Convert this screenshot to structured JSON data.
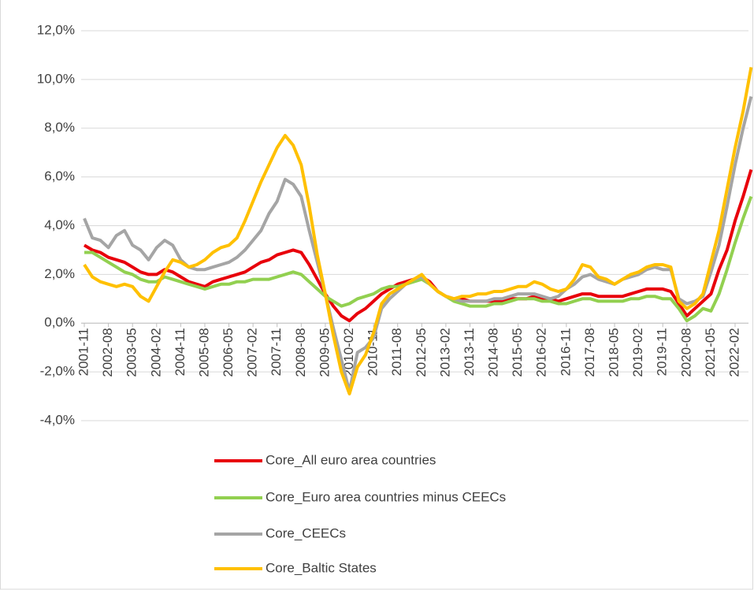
{
  "chart_data": {
    "type": "line",
    "x": [
      "2001-11",
      null,
      null,
      "2002-08",
      null,
      null,
      "2003-05",
      null,
      null,
      "2004-02",
      null,
      null,
      "2004-11",
      null,
      null,
      "2005-08",
      null,
      null,
      "2006-05",
      null,
      null,
      "2007-02",
      null,
      null,
      "2007-11",
      null,
      null,
      "2008-08",
      null,
      null,
      "2009-05",
      null,
      null,
      "2010-02",
      null,
      null,
      "2010-11",
      null,
      null,
      "2011-08",
      null,
      null,
      "2012-05",
      null,
      null,
      "2013-02",
      null,
      null,
      "2013-11",
      null,
      null,
      "2014-08",
      null,
      null,
      "2015-05",
      null,
      null,
      "2016-02",
      null,
      null,
      "2016-11",
      null,
      null,
      "2017-08",
      null,
      null,
      "2018-05",
      null,
      null,
      "2019-02",
      null,
      null,
      "2019-11",
      null,
      null,
      "2020-08",
      null,
      null,
      "2021-05",
      null,
      null,
      "2022-02",
      null,
      null
    ],
    "series": [
      {
        "name": "Core_All euro area countries",
        "color": "#e8000b",
        "values": [
          3.2,
          3.0,
          2.9,
          2.7,
          2.6,
          2.5,
          2.3,
          2.1,
          2.0,
          2.0,
          2.2,
          2.1,
          1.9,
          1.7,
          1.6,
          1.5,
          1.7,
          1.8,
          1.9,
          2.0,
          2.1,
          2.3,
          2.5,
          2.6,
          2.8,
          2.9,
          3.0,
          2.9,
          2.4,
          1.8,
          1.2,
          0.7,
          0.3,
          0.1,
          0.4,
          0.6,
          0.9,
          1.2,
          1.4,
          1.6,
          1.7,
          1.8,
          1.9,
          1.7,
          1.3,
          1.1,
          1.0,
          1.0,
          0.9,
          0.9,
          0.9,
          0.9,
          0.9,
          1.0,
          1.0,
          1.0,
          1.1,
          1.0,
          1.0,
          0.9,
          1.0,
          1.1,
          1.2,
          1.2,
          1.1,
          1.1,
          1.1,
          1.1,
          1.2,
          1.3,
          1.4,
          1.4,
          1.4,
          1.3,
          0.8,
          0.3,
          0.6,
          0.9,
          1.2,
          2.2,
          3.0,
          4.2,
          5.2,
          6.3
        ]
      },
      {
        "name": "Core_Euro area countries minus CEECs",
        "color": "#92d050",
        "values": [
          2.9,
          2.9,
          2.7,
          2.5,
          2.3,
          2.1,
          2.0,
          1.8,
          1.7,
          1.7,
          1.9,
          1.8,
          1.7,
          1.6,
          1.5,
          1.4,
          1.5,
          1.6,
          1.6,
          1.7,
          1.7,
          1.8,
          1.8,
          1.8,
          1.9,
          2.0,
          2.1,
          2.0,
          1.7,
          1.4,
          1.1,
          0.9,
          0.7,
          0.8,
          1.0,
          1.1,
          1.2,
          1.4,
          1.5,
          1.5,
          1.6,
          1.7,
          1.8,
          1.6,
          1.3,
          1.1,
          0.9,
          0.8,
          0.7,
          0.7,
          0.7,
          0.8,
          0.8,
          0.9,
          1.0,
          1.0,
          1.0,
          0.9,
          0.9,
          0.8,
          0.8,
          0.9,
          1.0,
          1.0,
          0.9,
          0.9,
          0.9,
          0.9,
          1.0,
          1.0,
          1.1,
          1.1,
          1.0,
          1.0,
          0.6,
          0.1,
          0.3,
          0.6,
          0.5,
          1.2,
          2.2,
          3.3,
          4.3,
          5.2
        ]
      },
      {
        "name": "Core_CEECs",
        "color": "#a5a5a5",
        "values": [
          4.3,
          3.5,
          3.4,
          3.1,
          3.6,
          3.8,
          3.2,
          3.0,
          2.6,
          3.1,
          3.4,
          3.2,
          2.6,
          2.3,
          2.2,
          2.2,
          2.3,
          2.4,
          2.5,
          2.7,
          3.0,
          3.4,
          3.8,
          4.5,
          5.0,
          5.9,
          5.7,
          5.2,
          3.8,
          2.5,
          1.2,
          -0.2,
          -1.5,
          -2.8,
          -1.2,
          -1.0,
          -0.6,
          0.6,
          1.0,
          1.3,
          1.6,
          1.8,
          1.9,
          1.6,
          1.3,
          1.1,
          1.0,
          0.9,
          0.9,
          0.9,
          0.9,
          1.0,
          1.0,
          1.1,
          1.2,
          1.2,
          1.2,
          1.1,
          1.0,
          1.1,
          1.4,
          1.6,
          1.9,
          2.0,
          1.8,
          1.7,
          1.6,
          1.8,
          1.9,
          2.0,
          2.2,
          2.3,
          2.2,
          2.2,
          1.0,
          0.8,
          0.9,
          1.1,
          2.1,
          3.2,
          4.8,
          6.5,
          8.0,
          9.3
        ]
      },
      {
        "name": "Core_Baltic States",
        "color": "#ffc000",
        "values": [
          2.4,
          1.9,
          1.7,
          1.6,
          1.5,
          1.6,
          1.5,
          1.1,
          0.9,
          1.5,
          2.1,
          2.6,
          2.5,
          2.3,
          2.4,
          2.6,
          2.9,
          3.1,
          3.2,
          3.5,
          4.2,
          5.0,
          5.8,
          6.5,
          7.2,
          7.7,
          7.3,
          6.5,
          4.8,
          2.8,
          1.2,
          -0.5,
          -2.0,
          -2.9,
          -1.8,
          -1.3,
          -0.4,
          0.8,
          1.2,
          1.4,
          1.6,
          1.8,
          2.0,
          1.6,
          1.3,
          1.1,
          1.0,
          1.1,
          1.1,
          1.2,
          1.2,
          1.3,
          1.3,
          1.4,
          1.5,
          1.5,
          1.7,
          1.6,
          1.4,
          1.3,
          1.4,
          1.8,
          2.4,
          2.3,
          1.9,
          1.8,
          1.6,
          1.8,
          2.0,
          2.1,
          2.3,
          2.4,
          2.4,
          2.3,
          0.9,
          0.6,
          0.8,
          1.2,
          2.5,
          3.8,
          5.5,
          7.2,
          8.7,
          10.5
        ]
      }
    ],
    "ylim": [
      -4,
      12
    ],
    "yticks": [
      {
        "value": -4,
        "label": "-4,0%"
      },
      {
        "value": -2,
        "label": "-2,0%"
      },
      {
        "value": 0,
        "label": "0,0%"
      },
      {
        "value": 2,
        "label": "2,0%"
      },
      {
        "value": 4,
        "label": "4,0%"
      },
      {
        "value": 6,
        "label": "6,0%"
      },
      {
        "value": 8,
        "label": "8,0%"
      },
      {
        "value": 10,
        "label": "10,0%"
      },
      {
        "value": 12,
        "label": "12,0%"
      }
    ],
    "grid": true,
    "legend": "bottom"
  }
}
